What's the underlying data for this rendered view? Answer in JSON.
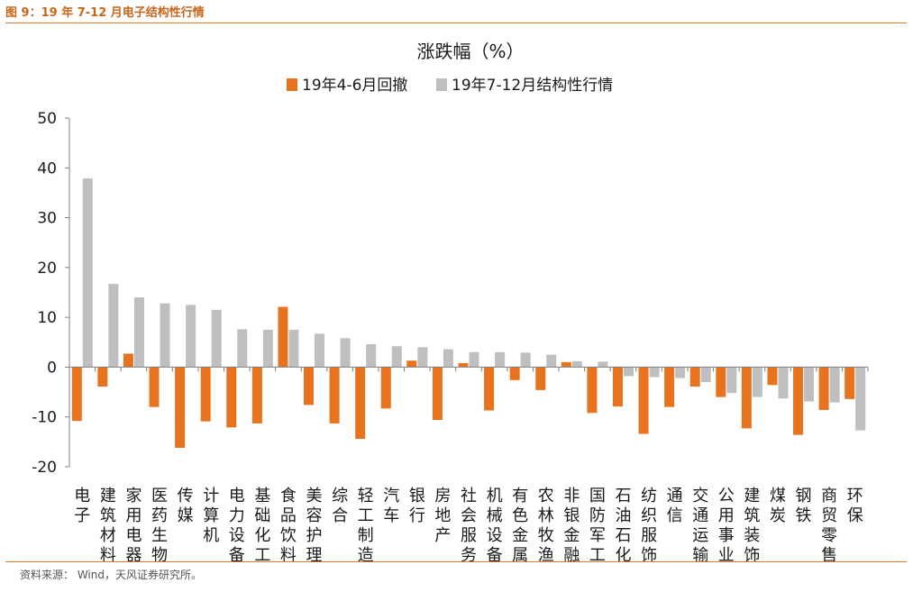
{
  "caption": "图 9：19 年 7-12 月电子结构性行情",
  "source": "资料来源：   Wind，天风证券研究所。",
  "colors": {
    "accent": "#e07b2a",
    "series1": "#e8731f",
    "series2": "#bfbfbf"
  },
  "chart_data": {
    "type": "bar",
    "title": "涨跌幅（%）",
    "xlabel": "",
    "ylabel": "",
    "ylim": [
      -20,
      50
    ],
    "yticks": [
      50,
      40,
      30,
      20,
      10,
      0,
      -10,
      -20
    ],
    "grid": false,
    "legend_position": "top-center",
    "categories": [
      "电子",
      "建筑材料",
      "家用电器",
      "医药生物",
      "传媒",
      "计算机",
      "电力设备",
      "基础化工",
      "食品饮料",
      "美容护理",
      "综合",
      "轻工制造",
      "汽车",
      "银行",
      "房地产",
      "社会服务",
      "机械设备",
      "有色金属",
      "农林牧渔",
      "非银金融",
      "国防军工",
      "石油石化",
      "纺织服饰",
      "通信",
      "交通运输",
      "公用事业",
      "建筑装饰",
      "煤炭",
      "钢铁",
      "商贸零售",
      "环保"
    ],
    "series": [
      {
        "name": "19年4-6月回撤",
        "values": [
          -10.8,
          -3.9,
          2.7,
          -8.0,
          -16.2,
          -10.9,
          -12.1,
          -11.3,
          12.1,
          -7.6,
          -11.3,
          -14.4,
          -8.3,
          1.3,
          -10.6,
          0.8,
          -8.7,
          -2.6,
          -4.6,
          1.0,
          -9.2,
          -7.9,
          -13.4,
          -8.0,
          -3.9,
          -6.0,
          -12.3,
          -3.6,
          -13.6,
          -8.6,
          -6.4
        ]
      },
      {
        "name": "19年7-12月结构性行情",
        "values": [
          37.9,
          16.7,
          14.0,
          12.8,
          12.5,
          11.5,
          7.6,
          7.5,
          7.5,
          6.7,
          5.8,
          4.6,
          4.2,
          4.0,
          3.6,
          3.0,
          3.0,
          2.9,
          2.5,
          1.2,
          1.1,
          -1.8,
          -2.0,
          -2.2,
          -3.0,
          -5.2,
          -6.0,
          -6.3,
          -6.9,
          -7.1,
          -12.7
        ]
      }
    ]
  }
}
